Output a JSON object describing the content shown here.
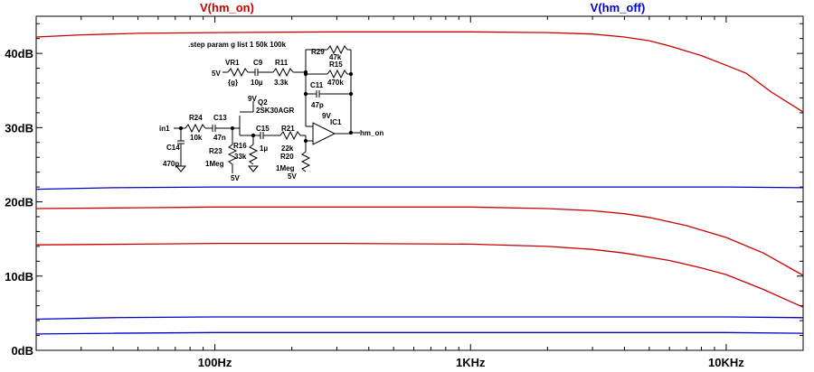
{
  "chart_data": {
    "type": "line",
    "x_scale": "log",
    "xlim": [
      20,
      20000
    ],
    "ylim": [
      0,
      45
    ],
    "grid": false,
    "x_ticks": [
      {
        "value": 100,
        "label": "100Hz"
      },
      {
        "value": 1000,
        "label": "1KHz"
      },
      {
        "value": 10000,
        "label": "10KHz"
      }
    ],
    "y_ticks": [
      {
        "value": 0,
        "label": "0dB"
      },
      {
        "value": 10,
        "label": "10dB"
      },
      {
        "value": 20,
        "label": "20dB"
      },
      {
        "value": 30,
        "label": "30dB"
      },
      {
        "value": 40,
        "label": "40dB"
      }
    ],
    "legend": [
      {
        "label": "V(hm_on)",
        "color": "#cc0000"
      },
      {
        "label": "V(hm_off)",
        "color": "#0000cc"
      }
    ],
    "series": [
      {
        "color": "#cc0000",
        "points": [
          [
            20,
            42.2
          ],
          [
            30,
            42.5
          ],
          [
            50,
            42.7
          ],
          [
            100,
            42.8
          ],
          [
            300,
            42.9
          ],
          [
            1000,
            42.9
          ],
          [
            2000,
            42.8
          ],
          [
            3000,
            42.6
          ],
          [
            4000,
            42.2
          ],
          [
            5000,
            41.7
          ],
          [
            6000,
            41.0
          ],
          [
            8000,
            39.7
          ],
          [
            10000,
            38.4
          ],
          [
            12000,
            37.3
          ],
          [
            15000,
            34.8
          ],
          [
            20000,
            32.1
          ]
        ]
      },
      {
        "color": "#cc0000",
        "points": [
          [
            20,
            19.1
          ],
          [
            50,
            19.2
          ],
          [
            100,
            19.3
          ],
          [
            300,
            19.3
          ],
          [
            1000,
            19.3
          ],
          [
            2000,
            19.1
          ],
          [
            3000,
            18.8
          ],
          [
            4000,
            18.4
          ],
          [
            5000,
            17.9
          ],
          [
            7000,
            16.8
          ],
          [
            10000,
            15.2
          ],
          [
            14000,
            13.1
          ],
          [
            20000,
            10.1
          ]
        ]
      },
      {
        "color": "#cc0000",
        "points": [
          [
            20,
            14.2
          ],
          [
            50,
            14.3
          ],
          [
            100,
            14.4
          ],
          [
            300,
            14.4
          ],
          [
            1000,
            14.3
          ],
          [
            2000,
            14.0
          ],
          [
            3000,
            13.6
          ],
          [
            4000,
            13.1
          ],
          [
            6000,
            12.1
          ],
          [
            8000,
            11.1
          ],
          [
            10000,
            10.2
          ],
          [
            14000,
            8.2
          ],
          [
            20000,
            5.8
          ]
        ]
      },
      {
        "color": "#0000cc",
        "points": [
          [
            20,
            21.7
          ],
          [
            40,
            21.9
          ],
          [
            100,
            22.0
          ],
          [
            1000,
            22.0
          ],
          [
            10000,
            22.0
          ],
          [
            20000,
            21.9
          ]
        ]
      },
      {
        "color": "#0000cc",
        "points": [
          [
            20,
            4.2
          ],
          [
            40,
            4.4
          ],
          [
            100,
            4.5
          ],
          [
            1000,
            4.5
          ],
          [
            10000,
            4.5
          ],
          [
            20000,
            4.4
          ]
        ]
      },
      {
        "color": "#0000cc",
        "points": [
          [
            20,
            2.2
          ],
          [
            40,
            2.3
          ],
          [
            100,
            2.4
          ],
          [
            1000,
            2.4
          ],
          [
            10000,
            2.4
          ],
          [
            20000,
            2.3
          ]
        ]
      }
    ]
  },
  "schematic": {
    "directive": ".step param g list 1 50k 100k",
    "labels": {
      "vr1": "VR1",
      "vr1_val": "{g}",
      "v5_left": "5V",
      "c9": "C9",
      "c9_val": "10µ",
      "r11": "R11",
      "r11_val": "3.3k",
      "r29": "R29",
      "r29_val": "47k",
      "r15": "R15",
      "r15_val": "470k",
      "c11": "C11",
      "c11_val": "47p",
      "q2": "Q2",
      "q2_val": "2SK30AGR",
      "q2_supply": "9V",
      "ic1": "IC1",
      "ic1_supply": "9V",
      "in1": "in1",
      "r24": "R24",
      "r24_val": "10k",
      "c13": "C13",
      "c13_val": "47n",
      "c14": "C14",
      "c14_val": "470p",
      "r23": "R23",
      "r23_val": "1Meg",
      "r16": "R16",
      "r16_val": "33k",
      "r16_supply": "5V",
      "c15": "C15",
      "c15_val": "1µ",
      "r21": "R21",
      "r21_val": "22k",
      "r20": "R20",
      "r20_val": "1Meg",
      "r20_supply": "5V",
      "out": "hm_on"
    }
  }
}
